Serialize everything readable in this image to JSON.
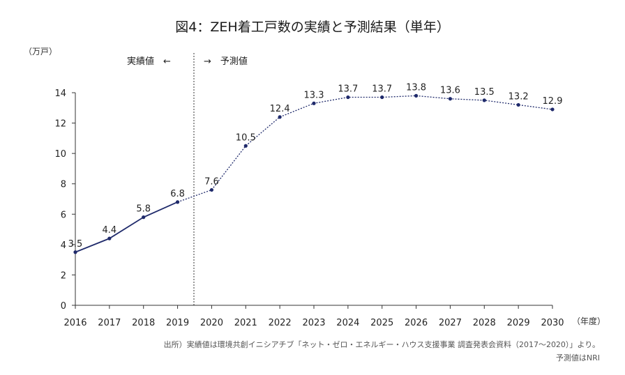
{
  "chart_data": {
    "type": "line",
    "title": "図4：ZEH着工戸数の実績と予測結果（単年）",
    "ylabel": "（万戸）",
    "xlabel": "（年度）",
    "ylim": [
      0,
      14
    ],
    "yticks": [
      "0",
      "2",
      "4",
      "6",
      "8",
      "10",
      "12",
      "14"
    ],
    "categories": [
      "2016",
      "2017",
      "2018",
      "2019",
      "2020",
      "2021",
      "2022",
      "2023",
      "2024",
      "2025",
      "2026",
      "2027",
      "2028",
      "2029",
      "2030"
    ],
    "series": [
      {
        "name": "実績値",
        "style": "solid",
        "x": [
          "2016",
          "2017",
          "2018",
          "2019"
        ],
        "values": [
          3.5,
          4.4,
          5.8,
          6.8
        ],
        "labels": [
          "3.5",
          "4.4",
          "5.8",
          "6.8"
        ]
      },
      {
        "name": "予測値",
        "style": "dotted",
        "x": [
          "2020",
          "2021",
          "2022",
          "2023",
          "2024",
          "2025",
          "2026",
          "2027",
          "2028",
          "2029",
          "2030"
        ],
        "values": [
          7.6,
          10.5,
          12.4,
          13.3,
          13.7,
          13.7,
          13.8,
          13.6,
          13.5,
          13.2,
          12.9
        ],
        "labels": [
          "7.6",
          "10.5",
          "12.4",
          "13.3",
          "13.7",
          "13.7",
          "13.8",
          "13.6",
          "13.5",
          "13.2",
          "12.9"
        ]
      }
    ],
    "annotations": {
      "actual": "実績値　←",
      "forecast": "→　予測値"
    },
    "colors": {
      "line": "#1f2a6b",
      "axis": "#333333"
    },
    "grid": false
  },
  "source": {
    "line1": "出所）実績値は環境共創イニシアチブ「ネット・ゼロ・エネルギー・ハウス支援事業 調査発表会資料（2017～2020）」より。",
    "line2": "予測値はNRI"
  }
}
